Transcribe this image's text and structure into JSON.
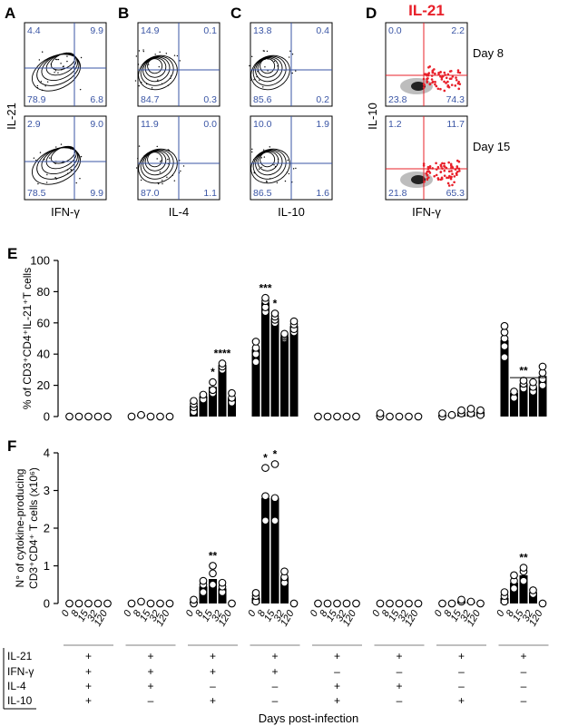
{
  "flow": {
    "panels": [
      {
        "letter": "A",
        "xlabel": "IFN-γ",
        "ylabel": "IL-21",
        "q": [
          [
            "4.4",
            "9.9",
            "78.9",
            "6.8"
          ],
          [
            "2.9",
            "9.0",
            "78.5",
            "9.9"
          ]
        ]
      },
      {
        "letter": "B",
        "xlabel": "IL-4",
        "ylabel": "",
        "q": [
          [
            "14.9",
            "0.1",
            "84.7",
            "0.3"
          ],
          [
            "11.9",
            "0.0",
            "87.0",
            "1.1"
          ]
        ]
      },
      {
        "letter": "C",
        "xlabel": "IL-10",
        "ylabel": "",
        "q": [
          [
            "13.8",
            "0.4",
            "85.6",
            "0.2"
          ],
          [
            "10.0",
            "1.9",
            "86.5",
            "1.6"
          ]
        ]
      },
      {
        "letter": "D",
        "xlabel": "IFN-γ",
        "ylabel": "IL-10",
        "title": "IL-21",
        "q": [
          [
            "0.0",
            "2.2",
            "23.8",
            "74.3"
          ],
          [
            "1.2",
            "11.7",
            "21.8",
            "65.3"
          ]
        ],
        "days": [
          "Day 8",
          "Day 15"
        ]
      }
    ],
    "overlay_color": "#e8202a",
    "quadrant_color": "#3a55a5"
  },
  "chart_data": [
    {
      "type": "bar",
      "panel": "E",
      "ylabel": "% of CD3⁺CD4⁺IL-21⁺T cells",
      "ylim": [
        0,
        100
      ],
      "yticks": [
        "0",
        "20",
        "40",
        "60",
        "80",
        "100"
      ],
      "groups": [
        {
          "values": [
            0,
            0,
            0,
            0,
            0
          ],
          "pts": [
            [
              0
            ],
            [
              0
            ],
            [
              0
            ],
            [
              0
            ],
            [
              0
            ]
          ]
        },
        {
          "values": [
            0,
            1,
            0,
            0,
            0
          ],
          "pts": [
            [
              0
            ],
            [
              1
            ],
            [
              0
            ],
            [
              0
            ],
            [
              0
            ]
          ]
        },
        {
          "values": [
            7,
            13,
            19,
            33,
            12
          ],
          "pts": [
            [
              3,
              6,
              8,
              10
            ],
            [
              11,
              14
            ],
            [
              15,
              17,
              22
            ],
            [
              30,
              32,
              34
            ],
            [
              9,
              12,
              15
            ]
          ]
        },
        {
          "values": [
            43,
            73,
            63,
            51,
            58
          ],
          "pts": [
            [
              35,
              40,
              44,
              48
            ],
            [
              67,
              70,
              74,
              76
            ],
            [
              60,
              62,
              64,
              66
            ],
            [
              50,
              51,
              52,
              53
            ],
            [
              54,
              56,
              59,
              61
            ]
          ]
        },
        {
          "values": [
            0,
            0,
            0,
            0,
            0
          ],
          "pts": [
            [
              0
            ],
            [
              0
            ],
            [
              0
            ],
            [
              0
            ],
            [
              0
            ]
          ]
        },
        {
          "values": [
            1,
            0,
            0,
            0,
            0
          ],
          "pts": [
            [
              0,
              2
            ],
            [
              0
            ],
            [
              0
            ],
            [
              0
            ],
            [
              0
            ]
          ]
        },
        {
          "values": [
            1,
            1,
            2,
            3,
            3
          ],
          "pts": [
            [
              0,
              2
            ],
            [
              1
            ],
            [
              2,
              4
            ],
            [
              2,
              5
            ],
            [
              1,
              4
            ]
          ]
        },
        {
          "values": [
            49,
            15,
            21,
            19,
            26
          ],
          "pts": [
            [
              38,
              45,
              50,
              54,
              58
            ],
            [
              12,
              16
            ],
            [
              18,
              21,
              23
            ],
            [
              16,
              19,
              22
            ],
            [
              20,
              24,
              28,
              32
            ]
          ]
        }
      ],
      "stars": [
        {
          "g": 2,
          "d": 2,
          "t": "*"
        },
        {
          "g": 2,
          "d": 3,
          "t": "****"
        },
        {
          "g": 3,
          "d": 1,
          "t": "***"
        },
        {
          "g": 3,
          "d": 2,
          "t": "*"
        },
        {
          "g": 7,
          "d": 2,
          "t": "**"
        }
      ]
    },
    {
      "type": "bar",
      "panel": "F",
      "ylabel": "N° of cytokine-producing",
      "ylabel2": "CD3⁺CD4⁺ T cells (x10⁶)",
      "ylim": [
        0,
        4
      ],
      "yticks": [
        "0",
        "1",
        "2",
        "3",
        "4"
      ],
      "groups": [
        {
          "values": [
            0,
            0,
            0,
            0,
            0
          ],
          "pts": [
            [
              0
            ],
            [
              0
            ],
            [
              0
            ],
            [
              0
            ],
            [
              0
            ]
          ]
        },
        {
          "values": [
            0,
            0,
            0,
            0,
            0
          ],
          "pts": [
            [
              0
            ],
            [
              0.05
            ],
            [
              0
            ],
            [
              0
            ],
            [
              0
            ]
          ]
        },
        {
          "values": [
            0.05,
            0.45,
            0.65,
            0.4,
            0
          ],
          "pts": [
            [
              0,
              0.1
            ],
            [
              0.3,
              0.5,
              0.6
            ],
            [
              0.5,
              0.8,
              1.0
            ],
            [
              0.3,
              0.45,
              0.55
            ],
            [
              0
            ]
          ]
        },
        {
          "values": [
            0.15,
            2.8,
            2.8,
            0.7,
            0
          ],
          "pts": [
            [
              0.05,
              0.2,
              0.28
            ],
            [
              2.2,
              2.85,
              3.6
            ],
            [
              2.2,
              2.8,
              3.7
            ],
            [
              0.55,
              0.7,
              0.85
            ],
            [
              0
            ]
          ]
        },
        {
          "values": [
            0,
            0,
            0,
            0,
            0
          ],
          "pts": [
            [
              0
            ],
            [
              0
            ],
            [
              0
            ],
            [
              0
            ],
            [
              0
            ]
          ]
        },
        {
          "values": [
            0,
            0,
            0,
            0,
            0
          ],
          "pts": [
            [
              0
            ],
            [
              0
            ],
            [
              0
            ],
            [
              0
            ],
            [
              0
            ]
          ]
        },
        {
          "values": [
            0,
            0,
            0.05,
            0.05,
            0
          ],
          "pts": [
            [
              0
            ],
            [
              0
            ],
            [
              0.05,
              0.1
            ],
            [
              0.05
            ],
            [
              0
            ]
          ]
        },
        {
          "values": [
            0.15,
            0.55,
            0.75,
            0.3,
            0
          ],
          "pts": [
            [
              0.05,
              0.2,
              0.3
            ],
            [
              0.4,
              0.6,
              0.75
            ],
            [
              0.6,
              0.85,
              0.95
            ],
            [
              0.25,
              0.35
            ],
            [
              0
            ]
          ]
        }
      ],
      "xticks": [
        "0",
        "8",
        "15",
        "32",
        "120"
      ],
      "stars": [
        {
          "g": 2,
          "d": 2,
          "t": "**"
        },
        {
          "g": 3,
          "d": 1,
          "t": "*"
        },
        {
          "g": 3,
          "d": 2,
          "t": "*"
        },
        {
          "g": 7,
          "d": 2,
          "t": "**"
        }
      ]
    }
  ],
  "table": {
    "rows": [
      {
        "label": "IL-21",
        "vals": [
          "+",
          "+",
          "+",
          "+",
          "+",
          "+",
          "+",
          "+"
        ]
      },
      {
        "label": "IFN-γ",
        "vals": [
          "+",
          "+",
          "+",
          "+",
          "–",
          "–",
          "–",
          "–"
        ]
      },
      {
        "label": "IL-4",
        "vals": [
          "+",
          "+",
          "–",
          "–",
          "+",
          "+",
          "–",
          "–"
        ]
      },
      {
        "label": "IL-10",
        "vals": [
          "+",
          "–",
          "+",
          "–",
          "+",
          "–",
          "+",
          "–"
        ]
      }
    ],
    "xlabel": "Days post-infection"
  },
  "panel_letters": {
    "e": "E",
    "f": "F"
  }
}
